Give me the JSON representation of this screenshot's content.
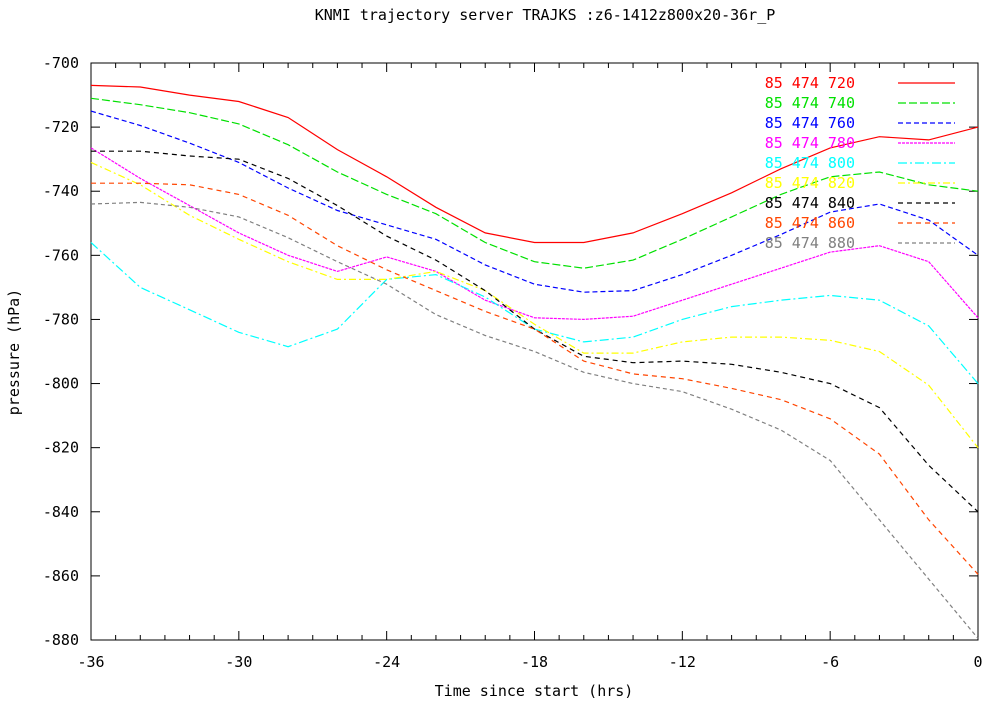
{
  "chart_data": {
    "type": "line",
    "title": "KNMI trajectory server TRAJKS :z6-1412z800x20-36r_P",
    "xlabel": "Time since start (hrs)",
    "ylabel": "pressure (hPa)",
    "xlim": [
      -36,
      0
    ],
    "ylim": [
      -880,
      -700
    ],
    "xticks": [
      -36,
      -30,
      -24,
      -18,
      -12,
      -6,
      0
    ],
    "yticks": [
      -700,
      -720,
      -740,
      -760,
      -780,
      -800,
      -820,
      -840,
      -860,
      -880
    ],
    "x_minor_step": 1,
    "grid": false,
    "legend_placement": "top-right",
    "x": [
      -36,
      -34,
      -32,
      -30,
      -28,
      -26,
      -24,
      -22,
      -20,
      -18,
      -16,
      -14,
      -12,
      -10,
      -8,
      -6,
      -4,
      -2,
      0
    ],
    "series": [
      {
        "name": "85 474 720",
        "color": "#ff0000",
        "dash": "",
        "values": [
          -707,
          -707.5,
          -710,
          -712,
          -717,
          -727,
          -735.5,
          -745,
          -753,
          -756,
          -756,
          -753,
          -747,
          -740.5,
          -733,
          -726.5,
          -723,
          -724,
          -720
        ]
      },
      {
        "name": "85 474 740",
        "color": "#00e000",
        "dash": "8,3",
        "values": [
          -711,
          -713,
          -715.5,
          -719,
          -725.5,
          -734,
          -741,
          -747,
          -756,
          -762,
          -764,
          -761.5,
          -755,
          -748,
          -741,
          -735.5,
          -734,
          -738,
          -740
        ]
      },
      {
        "name": "85 474 760",
        "color": "#0000ff",
        "dash": "5,3",
        "values": [
          -715,
          -719.5,
          -725,
          -731,
          -739,
          -746,
          -750.5,
          -755,
          -763,
          -769,
          -771.5,
          -771,
          -766,
          -760,
          -753.5,
          -746.5,
          -744,
          -749,
          -760
        ]
      },
      {
        "name": "85 474 780",
        "color": "#ff00ff",
        "dash": "3,1",
        "values": [
          -726.5,
          -736,
          -744.5,
          -753,
          -760,
          -765,
          -760.5,
          -765,
          -774,
          -779.5,
          -780,
          -779,
          -774,
          -769,
          -764,
          -759,
          -757,
          -762,
          -779.5
        ]
      },
      {
        "name": "85 474 800",
        "color": "#00ffff",
        "dash": "9,3,2,3",
        "values": [
          -756,
          -770,
          -777,
          -784,
          -788.5,
          -783,
          -767.5,
          -766,
          -773,
          -783,
          -787,
          -785.5,
          -780,
          -776,
          -774,
          -772.5,
          -774,
          -782,
          -800
        ]
      },
      {
        "name": "85 474 820",
        "color": "#ffff00",
        "dash": "7,3,2,3",
        "values": [
          -731,
          -738,
          -747.5,
          -755,
          -762,
          -767.5,
          -767.5,
          -765,
          -771,
          -781.5,
          -790.5,
          -790.5,
          -787,
          -785.5,
          -785.5,
          -786.5,
          -790,
          -800.5,
          -820
        ]
      },
      {
        "name": "85 474 840",
        "color": "#000000",
        "dash": "5,4",
        "values": [
          -727.5,
          -727.5,
          -729,
          -730,
          -736,
          -744.5,
          -754,
          -761.5,
          -771,
          -783,
          -791.5,
          -793.5,
          -793,
          -794,
          -796.5,
          -800,
          -807.5,
          -825.5,
          -840
        ]
      },
      {
        "name": "85 474 860",
        "color": "#ff4500",
        "dash": "5,4",
        "values": [
          -737.5,
          -737.5,
          -738,
          -741,
          -747.5,
          -757,
          -764.5,
          -771,
          -777.5,
          -783,
          -793,
          -797,
          -798.5,
          -801.5,
          -805,
          -811,
          -822,
          -842.5,
          -859.5
        ]
      },
      {
        "name": "85 474 880",
        "color": "#808080",
        "dash": "4,3",
        "values": [
          -744,
          -743.5,
          -745,
          -748,
          -754.5,
          -762,
          -769,
          -778.5,
          -785,
          -790,
          -796.5,
          -800,
          -802.5,
          -808,
          -814.5,
          -824,
          -842.5,
          -861,
          -879.5
        ]
      }
    ]
  }
}
